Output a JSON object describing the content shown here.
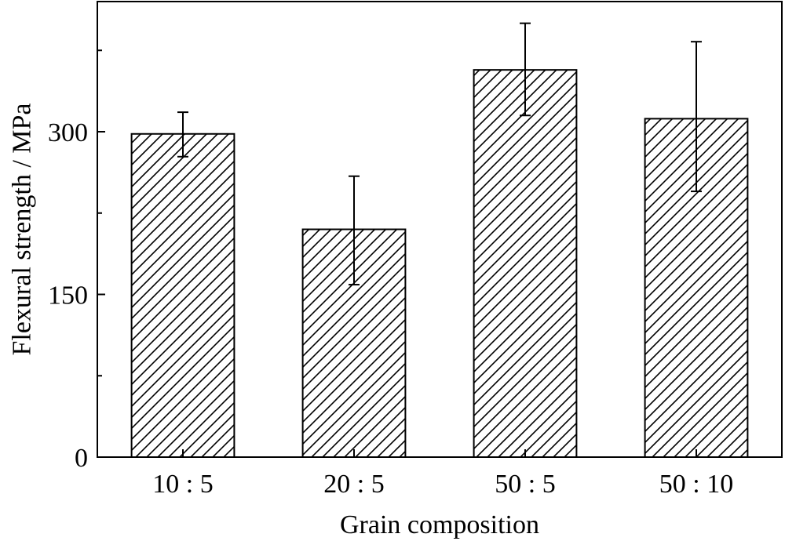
{
  "chart_data": {
    "type": "bar",
    "title": "",
    "xlabel": "Grain composition",
    "ylabel": "Flexural strength / MPa",
    "categories": [
      "10 : 5",
      "20 : 5",
      "50 : 5",
      "50 : 10"
    ],
    "values": [
      298,
      210,
      357,
      312
    ],
    "errors": [
      [
        277,
        318
      ],
      [
        159,
        259
      ],
      [
        315,
        400
      ],
      [
        245,
        383
      ]
    ],
    "ylim": [
      0,
      420
    ],
    "yticks": [
      0,
      150,
      300
    ],
    "yticks_minor": [
      75,
      225,
      375
    ],
    "grid": false,
    "legend": "none",
    "bar_fill": "hatched",
    "colors": {
      "stroke": "#000000",
      "background": "#ffffff"
    }
  }
}
